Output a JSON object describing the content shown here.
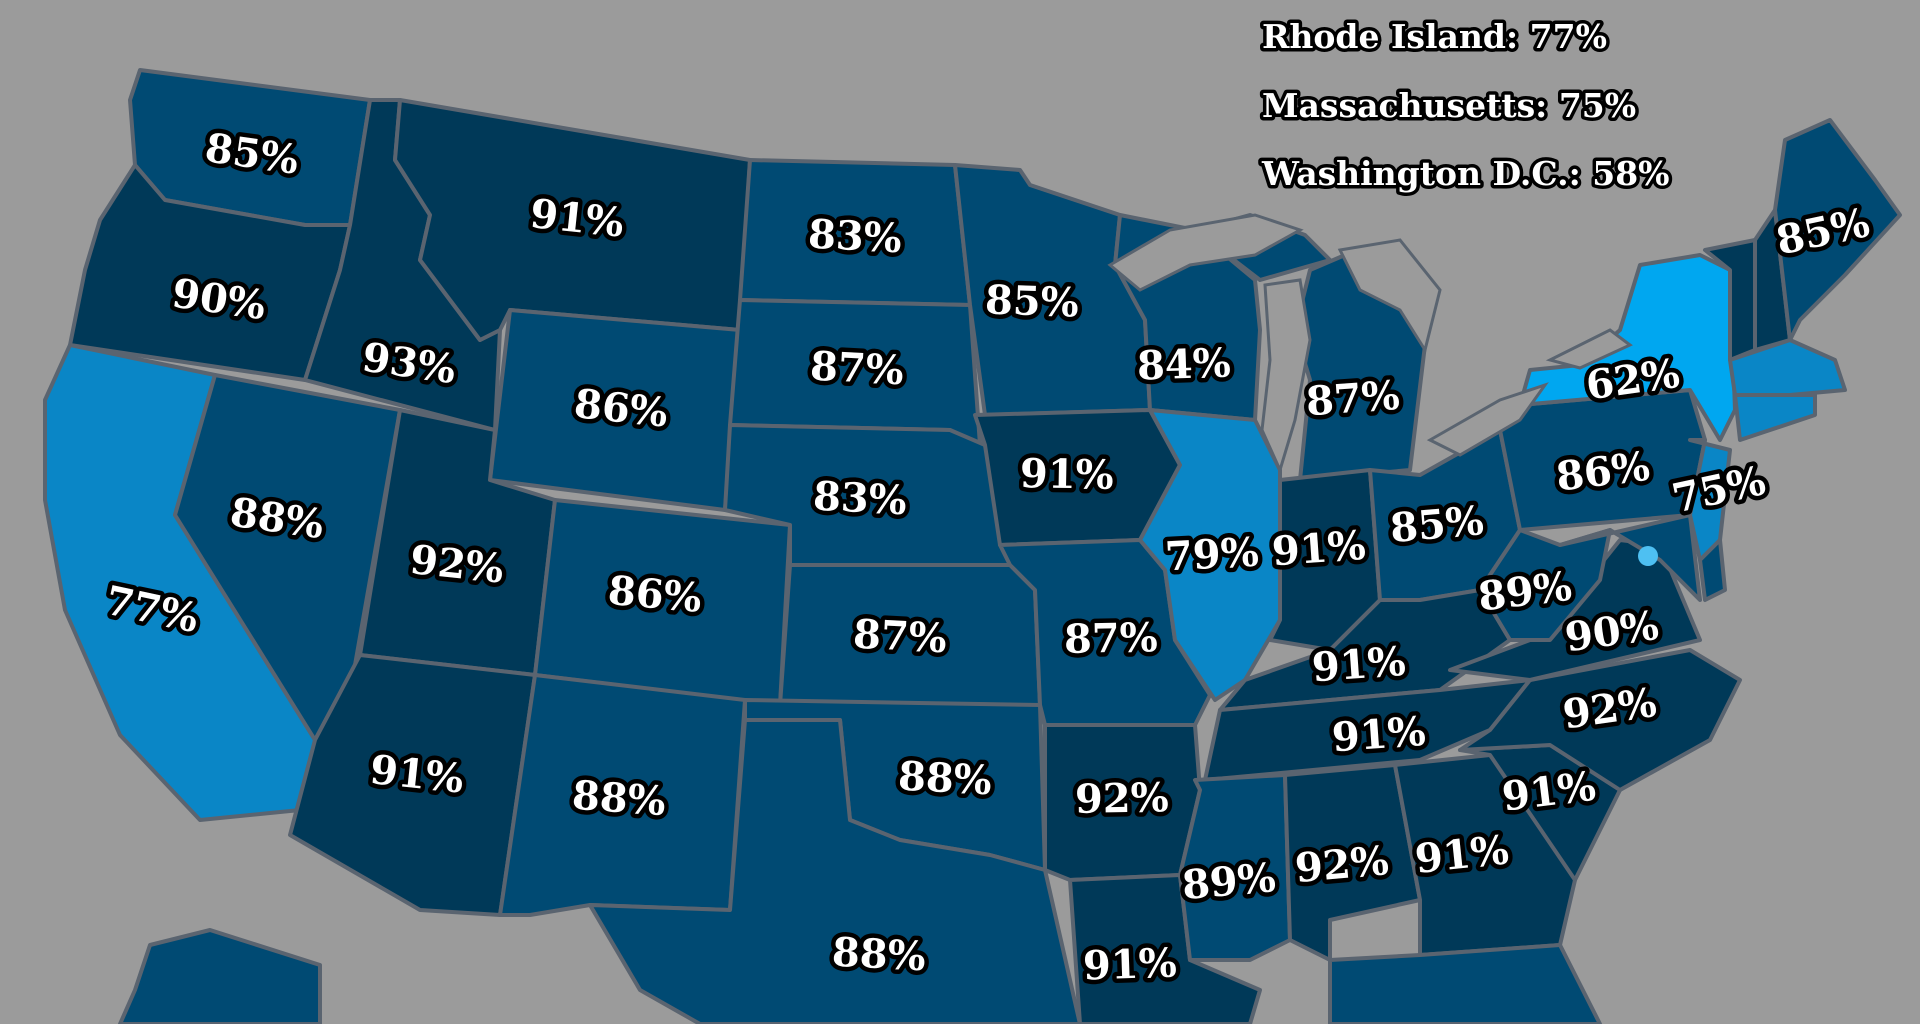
{
  "legend": [
    {
      "text": "Rhode Island: 77%"
    },
    {
      "text": "Massachusetts: 75%"
    },
    {
      "text": "Washington D.C.: 58%"
    }
  ],
  "colors": {
    "background": "#9b9b9b",
    "darkest": "#06314f",
    "dark": "#003958",
    "medium": "#004a73",
    "light": "#0a86c6",
    "lightest": "#00a7f0",
    "border": "#5a6470"
  },
  "states": {
    "WA": "85%",
    "OR": "90%",
    "CA": "77%",
    "ID": "93%",
    "NV": "88%",
    "MT": "91%",
    "WY": "86%",
    "UT": "92%",
    "AZ": "91%",
    "CO": "86%",
    "NM": "88%",
    "ND": "83%",
    "SD": "87%",
    "NE": "83%",
    "KS": "87%",
    "OK": "88%",
    "TX": "88%",
    "MN": "85%",
    "IA": "91%",
    "MO": "87%",
    "AR": "92%",
    "LA": "91%",
    "WI": "84%",
    "IL": "79%",
    "MI": "87%",
    "IN": "91%",
    "OH": "85%",
    "KY": "91%",
    "TN": "91%",
    "MS": "89%",
    "AL": "92%",
    "GA": "91%",
    "SC": "91%",
    "NC": "92%",
    "VA": "90%",
    "WV": "89%",
    "PA": "86%",
    "NY": "62%",
    "ME": "85%",
    "NJ": "75%"
  }
}
